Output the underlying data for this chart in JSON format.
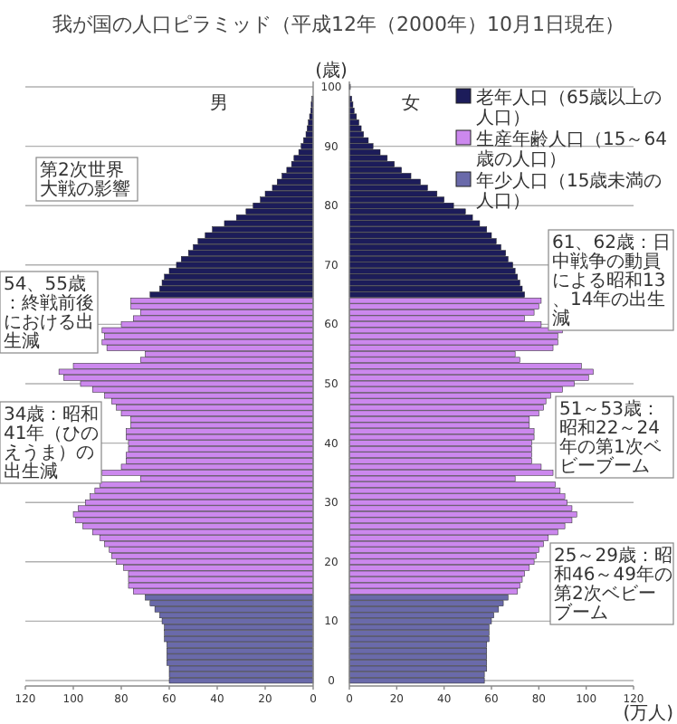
{
  "chart_data": [
    {
      "type": "bar",
      "orientation": "horizontal",
      "title": "我が国の人口ピラミッド（平成12年（2000年）10月1日現在）",
      "ylabel": "(歳)",
      "categories": [
        "100",
        null,
        null,
        null,
        null,
        null,
        null,
        null,
        null,
        null,
        "90",
        null,
        null,
        null,
        null,
        null,
        null,
        null,
        null,
        null,
        "80",
        null,
        null,
        null,
        null,
        null,
        null,
        null,
        null,
        null,
        "70",
        null,
        null,
        null,
        null,
        null,
        null,
        null,
        null,
        null,
        "60",
        null,
        null,
        null,
        null,
        null,
        null,
        null,
        null,
        null,
        "50",
        null,
        null,
        null,
        null,
        null,
        null,
        null,
        null,
        null,
        "40",
        null,
        null,
        null,
        null,
        null,
        null,
        null,
        null,
        null,
        "30",
        null,
        null,
        null,
        null,
        null,
        null,
        null,
        null,
        null,
        "20",
        null,
        null,
        null,
        null,
        null,
        null,
        null,
        null,
        null,
        "10",
        null,
        null,
        null,
        null,
        null,
        null,
        null,
        null,
        null,
        "0"
      ],
      "xlim": [
        120,
        0
      ],
      "xticks": [
        120,
        100,
        80,
        60,
        40,
        20,
        0
      ],
      "grid": "y",
      "series": [
        {
          "color": "#1c1c5a",
          "values": [
            null,
            null,
            0.5,
            0.8,
            1,
            1.5,
            2,
            2.5,
            3,
            4,
            5,
            6,
            8,
            9,
            11,
            13,
            15,
            17,
            20,
            22,
            25,
            28,
            32,
            37,
            42,
            45,
            48,
            50,
            52,
            55,
            57,
            60,
            62,
            63,
            64,
            68,
            null,
            null,
            null,
            null,
            null,
            null,
            null,
            null,
            null,
            null,
            null,
            null,
            null,
            null,
            null,
            null,
            null,
            null,
            null,
            null,
            null,
            null,
            null,
            null,
            null,
            null,
            null,
            null,
            null,
            null,
            null,
            null,
            null,
            null,
            null,
            null,
            null,
            null,
            null,
            null,
            null,
            null,
            null,
            null,
            null,
            null,
            null,
            null,
            null,
            null,
            null,
            null,
            null,
            null,
            null,
            null,
            null,
            null,
            null,
            null,
            null,
            null,
            null,
            null,
            null
          ]
        },
        {
          "color": "#cc88ee",
          "values": [
            null,
            null,
            null,
            null,
            null,
            null,
            null,
            null,
            null,
            null,
            null,
            null,
            null,
            null,
            null,
            null,
            null,
            null,
            null,
            null,
            null,
            null,
            null,
            null,
            null,
            null,
            null,
            null,
            null,
            null,
            null,
            null,
            null,
            null,
            null,
            null,
            76,
            76,
            72,
            75,
            80,
            88,
            87,
            88,
            86,
            70,
            72,
            100,
            106,
            104,
            97,
            92,
            87,
            84,
            82,
            80,
            76,
            76,
            78,
            78,
            77,
            77,
            78,
            78,
            80,
            88,
            72,
            89,
            91,
            93,
            95,
            98,
            100,
            99,
            96,
            92,
            89,
            87,
            85,
            84,
            82,
            79,
            77,
            77,
            77,
            75,
            null,
            null,
            null,
            null,
            null,
            null,
            null,
            null,
            null,
            null,
            null,
            null,
            null,
            null,
            null
          ]
        },
        {
          "color": "#6a6aaa",
          "values": [
            null,
            null,
            null,
            null,
            null,
            null,
            null,
            null,
            null,
            null,
            null,
            null,
            null,
            null,
            null,
            null,
            null,
            null,
            null,
            null,
            null,
            null,
            null,
            null,
            null,
            null,
            null,
            null,
            null,
            null,
            null,
            null,
            null,
            null,
            null,
            null,
            null,
            null,
            null,
            null,
            null,
            null,
            null,
            null,
            null,
            null,
            null,
            null,
            null,
            null,
            null,
            null,
            null,
            null,
            null,
            null,
            null,
            null,
            null,
            null,
            null,
            null,
            null,
            null,
            null,
            null,
            null,
            null,
            null,
            null,
            null,
            null,
            null,
            null,
            null,
            null,
            null,
            null,
            null,
            null,
            null,
            null,
            null,
            null,
            null,
            null,
            70,
            68,
            66,
            64,
            63,
            62,
            62,
            62,
            61,
            61,
            61,
            61,
            60,
            60,
            60
          ]
        }
      ],
      "annotations": [
        "第2次世界大戦の影響",
        "54、55歳：終戦前後における出生減",
        "34歳：昭和41年（ひのえうま）の出生減",
        "男"
      ]
    },
    {
      "type": "bar",
      "orientation": "horizontal",
      "xlabel": "(万人)",
      "tick_labels": "x",
      "categories": [
        "100",
        null,
        null,
        null,
        null,
        null,
        null,
        null,
        null,
        null,
        "90",
        null,
        null,
        null,
        null,
        null,
        null,
        null,
        null,
        null,
        "80",
        null,
        null,
        null,
        null,
        null,
        null,
        null,
        null,
        null,
        "70",
        null,
        null,
        null,
        null,
        null,
        null,
        null,
        null,
        null,
        "60",
        null,
        null,
        null,
        null,
        null,
        null,
        null,
        null,
        null,
        "50",
        null,
        null,
        null,
        null,
        null,
        null,
        null,
        null,
        null,
        "40",
        null,
        null,
        null,
        null,
        null,
        null,
        null,
        null,
        null,
        "30",
        null,
        null,
        null,
        null,
        null,
        null,
        null,
        null,
        null,
        "20",
        null,
        null,
        null,
        null,
        null,
        null,
        null,
        null,
        null,
        "10",
        null,
        null,
        null,
        null,
        null,
        null,
        null,
        null,
        null,
        "0"
      ],
      "xlim": [
        0,
        120
      ],
      "xticks": [
        0,
        20,
        40,
        60,
        80,
        100,
        120
      ],
      "grid": "y",
      "legend": "top right",
      "series": [
        {
          "name": "老年人口（65歳以上の人口）",
          "color": "#1c1c5a",
          "values": [
            0.4,
            null,
            1,
            1.5,
            2,
            3,
            4,
            5,
            6,
            8,
            10,
            13,
            16,
            19,
            22,
            26,
            30,
            33,
            37,
            40,
            44,
            49,
            52,
            55,
            58,
            60,
            62,
            64,
            66,
            67,
            69,
            70,
            71,
            72,
            73,
            74,
            null,
            null,
            null,
            null,
            null,
            null,
            null,
            null,
            null,
            null,
            null,
            null,
            null,
            null,
            null,
            null,
            null,
            null,
            null,
            null,
            null,
            null,
            null,
            null,
            null,
            null,
            null,
            null,
            null,
            null,
            null,
            null,
            null,
            null,
            null,
            null,
            null,
            null,
            null,
            null,
            null,
            null,
            null,
            null,
            null,
            null,
            null,
            null,
            null,
            null,
            null,
            null,
            null,
            null,
            null,
            null,
            null,
            null,
            null,
            null,
            null,
            null,
            null,
            null,
            null
          ]
        },
        {
          "name": "生産年齢人口（15～64歳の人口）",
          "color": "#cc88ee",
          "values": [
            null,
            null,
            null,
            null,
            null,
            null,
            null,
            null,
            null,
            null,
            null,
            null,
            null,
            null,
            null,
            null,
            null,
            null,
            null,
            null,
            null,
            null,
            null,
            null,
            null,
            null,
            null,
            null,
            null,
            null,
            null,
            null,
            null,
            null,
            null,
            null,
            81,
            80,
            78,
            74,
            81,
            90,
            88,
            88,
            86,
            70,
            72,
            98,
            103,
            101,
            95,
            90,
            85,
            83,
            82,
            80,
            76,
            76,
            78,
            78,
            77,
            77,
            77,
            77,
            81,
            86,
            70,
            87,
            89,
            91,
            92,
            94,
            96,
            94,
            91,
            88,
            84,
            82,
            80,
            79,
            78,
            76,
            74,
            73,
            72,
            71,
            null,
            null,
            null,
            null,
            null,
            null,
            null,
            null,
            null,
            null,
            null,
            null,
            null,
            null,
            null
          ]
        },
        {
          "name": "年少人口（15歳未満の人口）",
          "color": "#6a6aaa",
          "values": [
            null,
            null,
            null,
            null,
            null,
            null,
            null,
            null,
            null,
            null,
            null,
            null,
            null,
            null,
            null,
            null,
            null,
            null,
            null,
            null,
            null,
            null,
            null,
            null,
            null,
            null,
            null,
            null,
            null,
            null,
            null,
            null,
            null,
            null,
            null,
            null,
            null,
            null,
            null,
            null,
            null,
            null,
            null,
            null,
            null,
            null,
            null,
            null,
            null,
            null,
            null,
            null,
            null,
            null,
            null,
            null,
            null,
            null,
            null,
            null,
            null,
            null,
            null,
            null,
            null,
            null,
            null,
            null,
            null,
            null,
            null,
            null,
            null,
            null,
            null,
            null,
            null,
            null,
            null,
            null,
            null,
            null,
            null,
            null,
            null,
            null,
            67,
            65,
            63,
            61,
            60,
            59,
            59,
            59,
            58,
            58,
            58,
            58,
            58,
            57,
            57
          ]
        }
      ],
      "annotations": [
        "61、62歳：日中戦争の動員による昭和13、14年の出生減",
        "51～53歳：昭和22～24年の第1次ベビーブーム",
        "25～29歳：昭和46～49年の第2次ベビーブーム",
        "女"
      ]
    }
  ]
}
